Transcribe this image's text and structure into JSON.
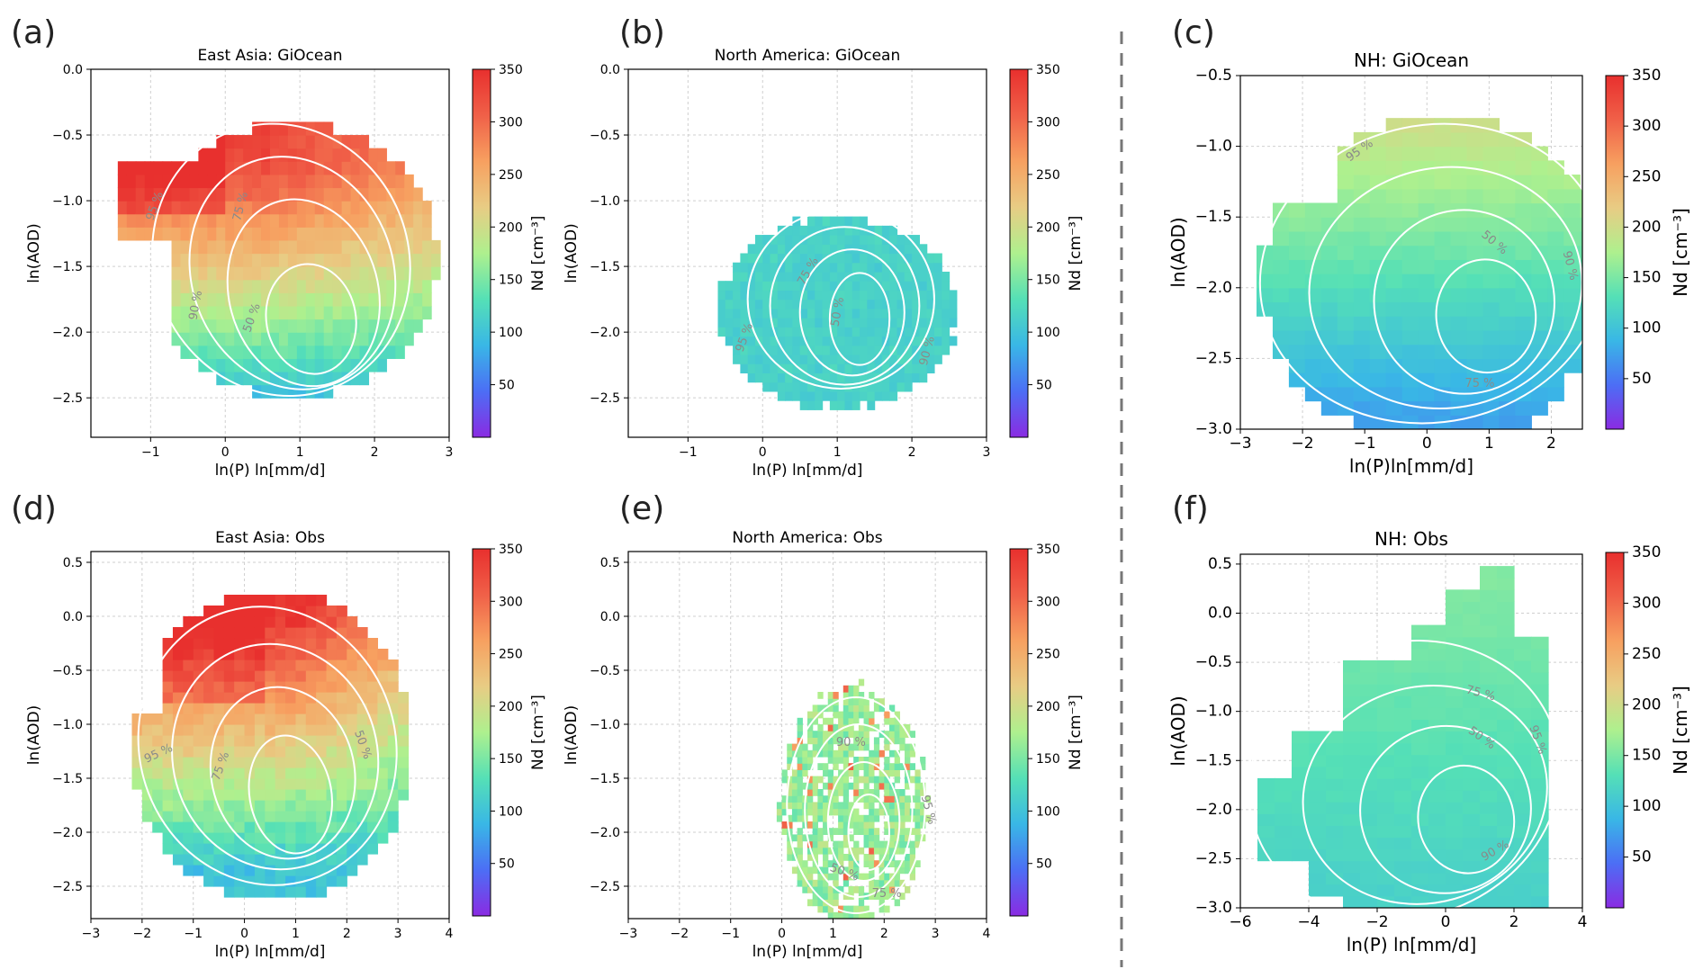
{
  "figure": {
    "panel_letters": [
      "(a)",
      "(b)",
      "(c)",
      "(d)",
      "(e)",
      "(f)"
    ]
  },
  "colorbar": {
    "label": "Nd [cm⁻³]",
    "ticks": [
      50,
      100,
      150,
      200,
      250,
      300,
      350
    ],
    "range": [
      0,
      350
    ],
    "colormap": "rainbow",
    "stops": [
      "#8a2be2",
      "#4c6ef5",
      "#39b7e6",
      "#55e0b6",
      "#aef08e",
      "#e8cc84",
      "#f7a060",
      "#f06048",
      "#e8302e"
    ]
  },
  "chart_data": [
    {
      "panel": "a",
      "type": "heatmap",
      "title": "East Asia: GiOcean",
      "xlabel": "ln(P) ln[mm/d]",
      "ylabel": "ln(AOD)",
      "xlim": [
        -1.8,
        3.0
      ],
      "ylim": [
        -2.8,
        0.0
      ],
      "xticks": [
        -1,
        0,
        1,
        2,
        3
      ],
      "yticks": [
        0.0,
        -0.5,
        -1.0,
        -1.5,
        -2.0,
        -2.5
      ],
      "grid": true,
      "contour_labels": [
        "95 %",
        "90 %",
        "75 %",
        "50 %"
      ],
      "description_values": {
        "Nd_high_region": 320,
        "Nd_low_region": 95
      }
    },
    {
      "panel": "b",
      "type": "heatmap",
      "title": "North America: GiOcean",
      "xlabel": "ln(P) ln[mm/d]",
      "ylabel": "ln(AOD)",
      "xlim": [
        -1.8,
        3.0
      ],
      "ylim": [
        -2.8,
        0.0
      ],
      "xticks": [
        -1,
        0,
        1,
        2,
        3
      ],
      "yticks": [
        0.0,
        -0.5,
        -1.0,
        -1.5,
        -2.0,
        -2.5
      ],
      "grid": true,
      "contour_labels": [
        "75 %",
        "50 %",
        "90 %",
        "95 %"
      ],
      "description_values": {
        "Nd_high_region": 125,
        "Nd_low_region": 90
      }
    },
    {
      "panel": "c",
      "type": "heatmap",
      "title": "NH: GiOcean",
      "xlabel": "ln(P)ln[mm/d]",
      "ylabel": "ln(AOD)",
      "xlim": [
        -3.0,
        2.5
      ],
      "ylim": [
        -3.0,
        -0.5
      ],
      "xticks": [
        -3,
        -2,
        -1,
        0,
        1,
        2
      ],
      "yticks": [
        -0.5,
        -1.0,
        -1.5,
        -2.0,
        -2.5,
        -3.0
      ],
      "grid": true,
      "contour_labels": [
        "95 %",
        "50 %",
        "90 %",
        "75 %"
      ],
      "description_values": {
        "Nd_high_region": 200,
        "Nd_low_region": 80
      }
    },
    {
      "panel": "d",
      "type": "heatmap",
      "title": "East Asia: Obs",
      "xlabel": "ln(P) ln[mm/d]",
      "ylabel": "ln(AOD)",
      "xlim": [
        -3.0,
        4.0
      ],
      "ylim": [
        -2.8,
        0.6
      ],
      "xticks": [
        -3,
        -2,
        -1,
        0,
        1,
        2,
        3,
        4
      ],
      "yticks": [
        0.5,
        0.0,
        -0.5,
        -1.0,
        -1.5,
        -2.0,
        -2.5
      ],
      "grid": true,
      "contour_labels": [
        "95 %",
        "75 %",
        "50 %"
      ],
      "description_values": {
        "Nd_high_region": 340,
        "Nd_low_region": 100
      }
    },
    {
      "panel": "e",
      "type": "heatmap",
      "title": "North America: Obs",
      "xlabel": "ln(P) ln[mm/d]",
      "ylabel": "ln(AOD)",
      "xlim": [
        -3.0,
        4.0
      ],
      "ylim": [
        -2.8,
        0.6
      ],
      "xticks": [
        -3,
        -2,
        -1,
        0,
        1,
        2,
        3,
        4
      ],
      "yticks": [
        0.5,
        0.0,
        -0.5,
        -1.0,
        -1.5,
        -2.0,
        -2.5
      ],
      "grid": true,
      "contour_labels": [
        "90 %",
        "95 %",
        "50 %",
        "75 %"
      ],
      "description_values": {
        "Nd_high_region": 190,
        "Nd_low_region": 150
      }
    },
    {
      "panel": "f",
      "type": "heatmap",
      "title": "NH: Obs",
      "xlabel": "ln(P) ln[mm/d]",
      "ylabel": "ln(AOD)",
      "xlim": [
        -6.0,
        4.0
      ],
      "ylim": [
        -3.0,
        0.6
      ],
      "xticks": [
        -6,
        -4,
        -2,
        0,
        2,
        4
      ],
      "yticks": [
        0.5,
        0.0,
        -0.5,
        -1.0,
        -1.5,
        -2.0,
        -2.5,
        -3.0
      ],
      "grid": true,
      "contour_labels": [
        "75 %",
        "50 %",
        "95 %",
        "90 %"
      ],
      "description_values": {
        "Nd_high_region": 160,
        "Nd_low_region": 110
      }
    }
  ]
}
